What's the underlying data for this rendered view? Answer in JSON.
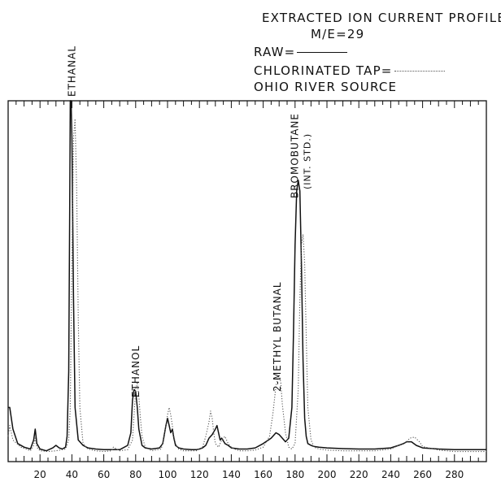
{
  "header": {
    "line1": "EXTRACTED ION CURRENT PROFILE",
    "line2": "M/E=29",
    "raw_label": "RAW=",
    "tap_label": "CHLORINATED TAP=",
    "line5": "OHIO RIVER SOURCE"
  },
  "colors": {
    "raw": "#111111",
    "tap": "#555555"
  },
  "chart_data": {
    "type": "line",
    "title": "EXTRACTED ION CURRENT PROFILE M/E=29",
    "xlabel": "",
    "ylabel": "",
    "xlim": [
      0,
      300
    ],
    "ylim": [
      0,
      100
    ],
    "xticks": [
      20,
      40,
      60,
      80,
      100,
      120,
      140,
      160,
      180,
      200,
      220,
      240,
      260,
      280
    ],
    "grid": false,
    "legend": "top-right",
    "series": [
      {
        "name": "RAW",
        "style": "solid",
        "x": [
          0,
          1,
          3,
          6,
          10,
          14,
          16,
          17,
          18,
          20,
          24,
          28,
          30,
          32,
          34,
          36,
          37,
          38,
          38.6,
          39,
          39.5,
          40,
          41,
          42,
          44,
          47,
          50,
          55,
          60,
          65,
          70,
          75,
          77,
          78,
          79,
          80,
          81,
          82,
          84,
          86,
          90,
          95,
          97,
          99,
          100,
          101,
          102,
          103,
          104,
          105,
          107,
          110,
          115,
          118,
          120,
          122,
          124,
          126,
          128,
          130,
          131,
          132,
          133,
          134,
          136,
          138,
          140,
          145,
          150,
          155,
          160,
          165,
          168,
          170,
          172,
          174,
          176,
          178,
          179,
          180,
          181,
          182,
          183,
          184,
          185,
          186,
          187,
          188,
          190,
          192,
          195,
          200,
          210,
          220,
          230,
          240,
          245,
          248,
          250,
          253,
          256,
          260,
          270,
          280,
          290,
          300
        ],
        "y": [
          15,
          15,
          9,
          5,
          4,
          3.5,
          6,
          9,
          5,
          3.5,
          3,
          3.8,
          4.5,
          3.8,
          3.5,
          4,
          7,
          25,
          70,
          100,
          100,
          90,
          45,
          15,
          6,
          4.5,
          3.8,
          3.5,
          3.3,
          3.3,
          3.3,
          4.5,
          8,
          17,
          20,
          19.5,
          15,
          9,
          4.5,
          3.8,
          3.5,
          3.8,
          5,
          10,
          12,
          10,
          8,
          9,
          6.5,
          4.5,
          3.8,
          3.5,
          3.3,
          3.3,
          3.5,
          3.8,
          4.5,
          6.5,
          7.5,
          9,
          10,
          8,
          6,
          6.5,
          5,
          4.5,
          3.8,
          3.5,
          3.5,
          3.8,
          5,
          6.5,
          8,
          7.5,
          6.5,
          5.5,
          6.5,
          15,
          35,
          60,
          75,
          78,
          75,
          55,
          28,
          12,
          7,
          5,
          4.5,
          4.2,
          4,
          3.8,
          3.6,
          3.5,
          3.5,
          3.8,
          4.5,
          5,
          5.5,
          5.5,
          4.5,
          3.8,
          3.5,
          3.3,
          3.3,
          3.3
        ]
      },
      {
        "name": "CHLORINATED TAP",
        "style": "dotted",
        "x": [
          0,
          1,
          3,
          8,
          14,
          16,
          17,
          18,
          20,
          25,
          30,
          36,
          38,
          39,
          40,
          41,
          42,
          43,
          44,
          45,
          47,
          50,
          55,
          60,
          65,
          66,
          68,
          70,
          75,
          78,
          79,
          80,
          81,
          82,
          83,
          84,
          86,
          90,
          96,
          98,
          100,
          101,
          102,
          103,
          104,
          105,
          107,
          110,
          118,
          122,
          124,
          126,
          127,
          128,
          129,
          130,
          132,
          134,
          136,
          138,
          140,
          142,
          145,
          150,
          155,
          160,
          164,
          166,
          168,
          169,
          170,
          171,
          172,
          174,
          176,
          178,
          180,
          182,
          183,
          184,
          185,
          186,
          187,
          188,
          190,
          192,
          195,
          200,
          210,
          220,
          230,
          240,
          245,
          250,
          252,
          255,
          258,
          260,
          270,
          280,
          290,
          300
        ],
        "y": [
          7,
          10,
          6,
          4,
          3,
          4.5,
          6.5,
          4,
          3,
          2.8,
          3,
          3.5,
          6,
          15,
          55,
          90,
          95,
          75,
          40,
          15,
          5,
          3.5,
          3,
          2.8,
          3,
          4,
          3.5,
          3,
          3.3,
          6,
          13,
          20,
          22,
          18,
          12,
          7,
          4,
          3,
          3.5,
          7,
          13,
          15,
          13,
          10,
          7,
          5,
          3.5,
          3,
          3,
          4,
          7,
          11,
          14,
          12,
          8,
          5,
          4,
          6,
          7,
          5,
          4,
          3.5,
          3,
          3,
          3.2,
          4,
          7,
          13,
          21,
          23,
          24,
          22,
          16,
          8,
          4,
          3.5,
          5,
          20,
          45,
          60,
          63,
          55,
          35,
          15,
          6,
          4,
          3.5,
          3.2,
          3,
          3,
          3,
          3.5,
          4.5,
          5.5,
          6.5,
          6.8,
          5.5,
          4.2,
          3.2,
          2.8,
          2.8,
          2.8
        ]
      }
    ],
    "annotations": [
      {
        "label": "ETHANAL",
        "x": 40
      },
      {
        "label": "ETHANOL",
        "x": 80
      },
      {
        "label": "2-METHYL BUTANAL",
        "x": 170
      },
      {
        "label": "BROMOBUTANE",
        "sublabel": "(INT. STD.)",
        "x": 183
      }
    ]
  }
}
